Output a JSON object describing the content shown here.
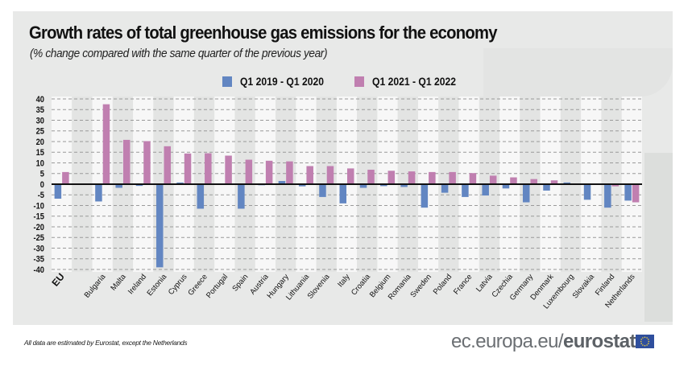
{
  "title": "Growth rates of total greenhouse gas emissions for the economy",
  "subtitle": "(% change compared with the same quarter of the previous year)",
  "footnote": "All data are estimated by Eurostat, except the Netherlands",
  "brand": {
    "prefix": "ec.europa.eu/",
    "name": "eurostat",
    "flag_icon": "eu-flag-icon"
  },
  "colors": {
    "series1": "#6286c2",
    "series2": "#c07fb0",
    "zero_line": "#111111",
    "panel": "#e8e9e8"
  },
  "chart_data": {
    "type": "bar",
    "title": "Growth rates of total greenhouse gas emissions for the economy",
    "subtitle": "(% change compared with the same quarter of the previous year)",
    "xlabel": "",
    "ylabel": "",
    "ylim": [
      -40,
      40
    ],
    "yticks": [
      40,
      35,
      30,
      25,
      20,
      15,
      10,
      5,
      0,
      -5,
      -10,
      -15,
      -20,
      -25,
      -30,
      -35,
      -40
    ],
    "grid": true,
    "legend_position": "top-center",
    "categories": [
      "EU",
      "",
      "Bulgaria",
      "Malta",
      "Ireland",
      "Estonia",
      "Cyprus",
      "Greece",
      "Portugal",
      "Spain",
      "Austria",
      "Hungary",
      "Lithuania",
      "Slovenia",
      "Italy",
      "Croatia",
      "Belgium",
      "Romania",
      "Sweden",
      "Poland",
      "France",
      "Latvia",
      "Czechia",
      "Germany",
      "Denmark",
      "Luxembourg",
      "Slovakia",
      "Finland",
      "Netherlands"
    ],
    "series": [
      {
        "name": "Q1 2019 - Q1 2020",
        "color": "#6286c2",
        "values": [
          -6.8,
          null,
          -8.1,
          -1.7,
          -0.8,
          -39.0,
          0.8,
          -11.5,
          0.0,
          -11.5,
          -0.5,
          1.5,
          -1.0,
          -6.0,
          -9.0,
          -1.7,
          -0.9,
          -1.3,
          -11.0,
          -4.0,
          -6.0,
          -5.3,
          -2.0,
          -8.5,
          -3.0,
          0.8,
          -7.3,
          -11.0,
          -7.7
        ]
      },
      {
        "name": "Q1 2021 - Q1 2022",
        "color": "#c07fb0",
        "values": [
          5.7,
          null,
          37.5,
          20.8,
          20.2,
          17.8,
          14.4,
          14.5,
          13.4,
          11.5,
          11.0,
          10.7,
          8.5,
          8.5,
          7.4,
          6.8,
          6.3,
          6.0,
          5.7,
          5.7,
          5.2,
          4.0,
          3.2,
          2.4,
          1.8,
          0.3,
          0.0,
          -1.0,
          -8.5
        ]
      }
    ]
  }
}
